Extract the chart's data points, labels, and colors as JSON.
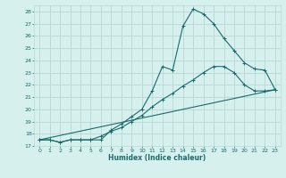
{
  "title": "",
  "xlabel": "Humidex (Indice chaleur)",
  "background_color": "#d6f0ee",
  "grid_color": "#b8d8d4",
  "line_color": "#1a6b6b",
  "xlim": [
    -0.5,
    23.5
  ],
  "ylim": [
    17,
    28.5
  ],
  "yticks": [
    17,
    18,
    19,
    20,
    21,
    22,
    23,
    24,
    25,
    26,
    27,
    28
  ],
  "xticks": [
    0,
    1,
    2,
    3,
    4,
    5,
    6,
    7,
    8,
    9,
    10,
    11,
    12,
    13,
    14,
    15,
    16,
    17,
    18,
    19,
    20,
    21,
    22,
    23
  ],
  "line1_x": [
    0,
    1,
    2,
    3,
    4,
    5,
    6,
    7,
    8,
    9,
    10,
    11,
    12,
    13,
    14,
    15,
    16,
    17,
    18,
    19,
    20,
    21,
    22,
    23
  ],
  "line1_y": [
    17.5,
    17.5,
    17.3,
    17.5,
    17.5,
    17.5,
    17.5,
    18.3,
    18.8,
    19.4,
    20.0,
    21.5,
    23.5,
    23.2,
    26.8,
    28.2,
    27.8,
    27.0,
    25.8,
    24.8,
    23.8,
    23.3,
    23.2,
    21.6
  ],
  "line2_x": [
    0,
    1,
    2,
    3,
    4,
    5,
    6,
    7,
    8,
    9,
    10,
    11,
    12,
    13,
    14,
    15,
    16,
    17,
    18,
    19,
    20,
    21,
    22,
    23
  ],
  "line2_y": [
    17.5,
    17.5,
    17.3,
    17.5,
    17.5,
    17.5,
    17.8,
    18.2,
    18.5,
    19.0,
    19.5,
    20.2,
    20.8,
    21.3,
    21.9,
    22.4,
    23.0,
    23.5,
    23.5,
    23.0,
    22.0,
    21.5,
    21.5,
    21.6
  ],
  "line3_x": [
    0,
    23
  ],
  "line3_y": [
    17.5,
    21.6
  ],
  "marker": "+"
}
